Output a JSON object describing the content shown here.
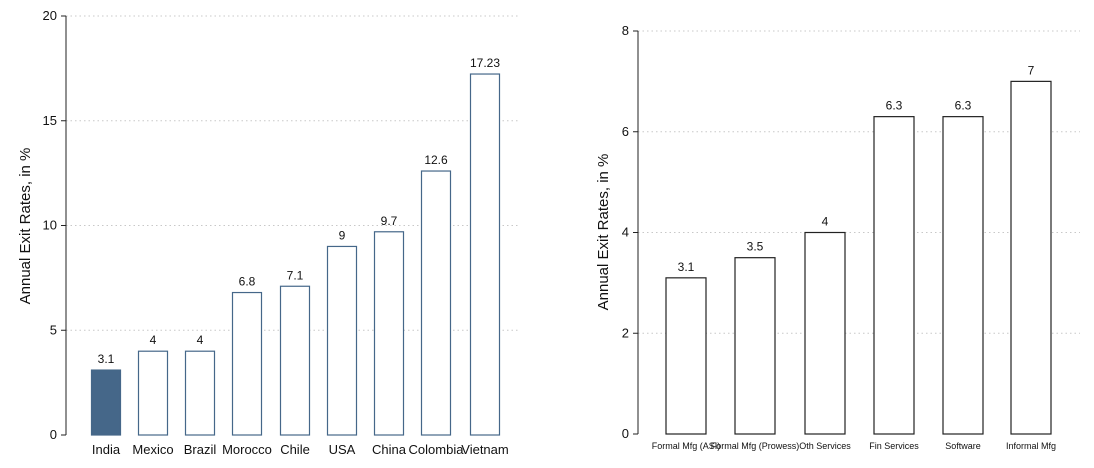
{
  "chart_data": [
    {
      "type": "bar",
      "title": "",
      "xlabel": "",
      "ylabel": "Annual Exit Rates, in %",
      "ylim": [
        0,
        20
      ],
      "yticks": [
        0,
        5,
        10,
        15,
        20
      ],
      "grid": true,
      "categories": [
        "India",
        "Mexico",
        "Brazil",
        "Morocco",
        "Chile",
        "USA",
        "China",
        "Colombia",
        "Vietnam"
      ],
      "values": [
        3.1,
        4,
        4,
        6.8,
        7.1,
        9,
        9.7,
        12.6,
        17.23
      ],
      "value_labels": [
        "3.1",
        "4",
        "4",
        "6.8",
        "7.1",
        "9",
        "9.7",
        "12.6",
        "17.23"
      ],
      "highlight_index": 0,
      "colors": {
        "highlight_fill": "#456789",
        "bar_fill": "#ffffff",
        "bar_stroke": "#456789"
      }
    },
    {
      "type": "bar",
      "title": "",
      "xlabel": "",
      "ylabel": "Annual Exit Rates, in %",
      "ylim": [
        0,
        8
      ],
      "yticks": [
        0,
        2,
        4,
        6,
        8
      ],
      "grid": true,
      "categories": [
        "Formal Mfg (ASI)",
        "Formal Mfg (Prowess)",
        "Oth Services",
        "Fin Services",
        "Software",
        "Informal Mfg"
      ],
      "values": [
        3.1,
        3.5,
        4,
        6.3,
        6.3,
        7
      ],
      "value_labels": [
        "3.1",
        "3.5",
        "4",
        "6.3",
        "6.3",
        "7"
      ],
      "colors": {
        "bar_fill": "#ffffff",
        "bar_stroke": "#222222"
      }
    }
  ]
}
